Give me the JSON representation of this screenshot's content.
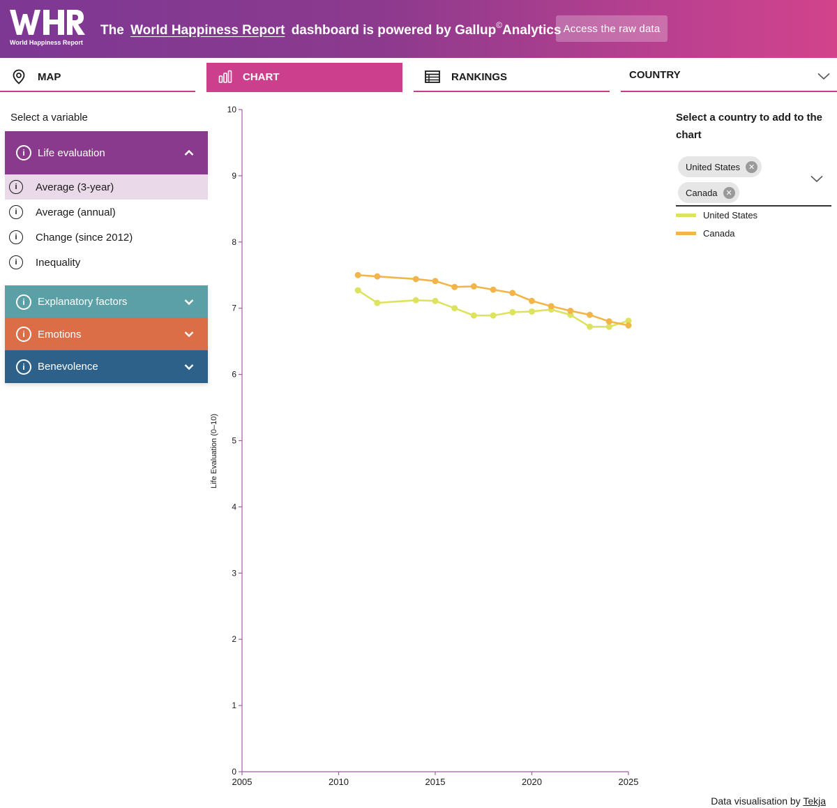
{
  "header": {
    "logo_caption": "World Happiness Report",
    "headline_prefix": "The",
    "headline_link": "World Happiness Report",
    "headline_middle": "dashboard is powered by Gallup",
    "headline_sup": "©",
    "headline_suffix": "Analytics",
    "raw_data_button": "Access the raw data"
  },
  "nav": {
    "tabs": [
      {
        "label": "MAP",
        "icon": "map-pin-icon"
      },
      {
        "label": "CHART",
        "icon": "bar-chart-icon",
        "active": true
      },
      {
        "label": "RANKINGS",
        "icon": "table-icon"
      }
    ],
    "country_label": "COUNTRY"
  },
  "sidebar": {
    "title": "Select a variable",
    "life_evaluation": {
      "label": "Life evaluation",
      "items": [
        "Average (3-year)",
        "Average (annual)",
        "Change (since 2012)",
        "Inequality"
      ],
      "selected": "Average (3-year)"
    },
    "groups": [
      "Explanatory factors",
      "Emotions",
      "Benevolence"
    ]
  },
  "colors": {
    "life": "#8a3a8c",
    "explanatory": "#5aa0a6",
    "emotions": "#dc6e47",
    "benevolence": "#2e6189",
    "us_line": "#dde35f",
    "canada_line": "#f2b54a",
    "axis": "#a45aa8"
  },
  "country_panel": {
    "prompt": "Select a country to add to the chart",
    "chips": [
      "United States",
      "Canada"
    ]
  },
  "chart_data": {
    "type": "line",
    "xlabel": "",
    "ylabel": "Life Evaluation (0–10)",
    "xlim": [
      2005,
      2025
    ],
    "ylim": [
      0,
      10
    ],
    "x_ticks": [
      "2005",
      "2010",
      "2015",
      "2020",
      "2025"
    ],
    "y_ticks": [
      "0",
      "1",
      "2",
      "3",
      "4",
      "5",
      "6",
      "7",
      "8",
      "9",
      "10"
    ],
    "x": [
      2011,
      2012,
      2014,
      2015,
      2016,
      2017,
      2018,
      2019,
      2020,
      2021,
      2022,
      2023,
      2024,
      2025
    ],
    "series": [
      {
        "name": "United States",
        "values": [
          7.27,
          7.08,
          7.12,
          7.11,
          7.0,
          6.89,
          6.89,
          6.94,
          6.95,
          6.98,
          6.9,
          6.72,
          6.72,
          6.81
        ]
      },
      {
        "name": "Canada",
        "values": [
          7.5,
          7.48,
          7.44,
          7.41,
          7.32,
          7.33,
          7.28,
          7.23,
          7.11,
          7.03,
          6.96,
          6.9,
          6.8,
          6.74
        ]
      }
    ]
  },
  "footer": {
    "credit_prefix": "Data visualisation by",
    "credit_link": "Tekja"
  }
}
